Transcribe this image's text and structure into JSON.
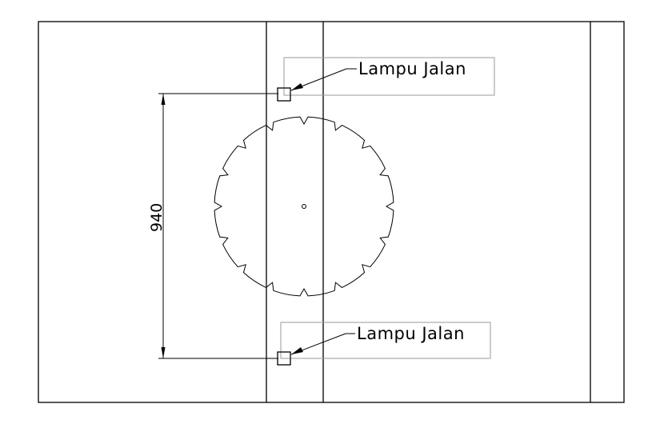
{
  "labels": {
    "lamp_top": "Lampu Jalan",
    "lamp_bottom": "Lampu Jalan",
    "dimension": "940"
  },
  "colors": {
    "line": "#000000",
    "label_box": "#9a9a9a",
    "background": "#ffffff"
  },
  "roundabout": {
    "notch_count": 16
  }
}
